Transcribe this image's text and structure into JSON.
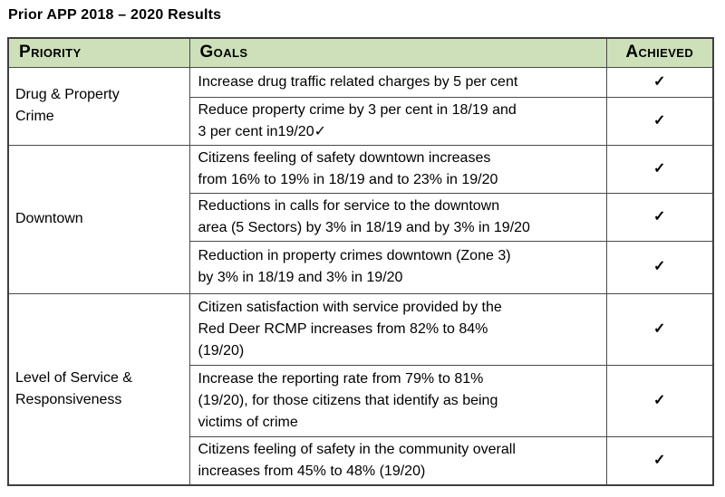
{
  "page_title": "Prior APP 2018 – 2020 Results",
  "colors": {
    "header_bg": "#cde0ba",
    "border": "#3f3f3f",
    "inner_border": "#4a4a4a",
    "text": "#000000"
  },
  "table": {
    "headers": [
      "Priority",
      "Goals",
      "Achieved"
    ],
    "groups": [
      {
        "priority": "Drug & Property\nCrime",
        "goals": [
          {
            "text": "Increase drug traffic related charges by 5 per cent",
            "achieved": "✓"
          },
          {
            "text": "Reduce property crime by 3 per cent in 18/19 and\n3 per cent in19/20✓",
            "achieved": "✓"
          }
        ]
      },
      {
        "priority": "Downtown",
        "goals": [
          {
            "text": "Citizens feeling of safety downtown increases\nfrom 16% to 19% in 18/19 and to 23% in 19/20",
            "achieved": "✓"
          },
          {
            "text": "Reductions in calls for service to the downtown\narea (5 Sectors) by 3% in 18/19 and by 3% in 19/20",
            "achieved": "✓"
          },
          {
            "text": "Reduction in property crimes downtown (Zone 3)\nby 3% in 18/19 and 3% in 19/20",
            "achieved": "✓"
          }
        ]
      },
      {
        "priority": "Level of Service &\nResponsiveness",
        "goals": [
          {
            "text": "Citizen satisfaction with service provided by the\nRed Deer RCMP increases from 82% to 84%\n(19/20)",
            "achieved": "✓"
          },
          {
            "text": "Increase the reporting rate from 79% to 81%\n(19/20), for those citizens that identify as being\nvictims of crime",
            "achieved": "✓"
          },
          {
            "text": "Citizens feeling of safety in the community overall\nincreases from 45% to 48% (19/20)",
            "achieved": "✓"
          }
        ]
      }
    ]
  }
}
